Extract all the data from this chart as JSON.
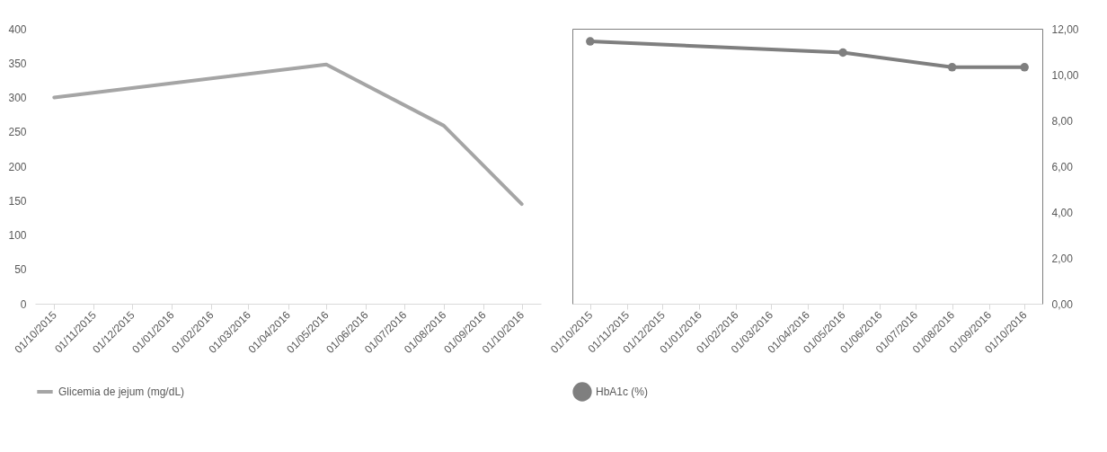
{
  "chart_data": [
    {
      "type": "line",
      "x": [
        "2015-10-01",
        "2016-05-01",
        "2016-08-01",
        "2016-10-01"
      ],
      "xlim": [
        "2015-09-16",
        "2016-10-16"
      ],
      "xticks": [
        {
          "value": "2015-10-01",
          "label": "01/10/2015"
        },
        {
          "value": "2015-11-01",
          "label": "01/11/2015"
        },
        {
          "value": "2015-12-01",
          "label": "01/12/2015"
        },
        {
          "value": "2016-01-01",
          "label": "01/01/2016"
        },
        {
          "value": "2016-02-01",
          "label": "01/02/2016"
        },
        {
          "value": "2016-03-01",
          "label": "01/03/2016"
        },
        {
          "value": "2016-04-01",
          "label": "01/04/2016"
        },
        {
          "value": "2016-05-01",
          "label": "01/05/2016"
        },
        {
          "value": "2016-06-01",
          "label": "01/06/2016"
        },
        {
          "value": "2016-07-01",
          "label": "01/07/2016"
        },
        {
          "value": "2016-08-01",
          "label": "01/08/2016"
        },
        {
          "value": "2016-09-01",
          "label": "01/09/2016"
        },
        {
          "value": "2016-10-01",
          "label": "01/10/2016"
        }
      ],
      "ylim": [
        0,
        400
      ],
      "yticks": [
        0,
        50,
        100,
        150,
        200,
        250,
        300,
        350,
        400
      ],
      "series": [
        {
          "name": "Glicemia de jejum (mg/dL)",
          "color": "#a5a5a5",
          "values": [
            300,
            348,
            259,
            145
          ]
        }
      ],
      "legend": "bottom",
      "grid": false
    },
    {
      "type": "line",
      "x": [
        "2015-10-01",
        "2016-05-01",
        "2016-08-01",
        "2016-10-01"
      ],
      "xlim": [
        "2015-09-16",
        "2016-10-16"
      ],
      "xticks": [
        {
          "value": "2015-10-01",
          "label": "01/10/2015"
        },
        {
          "value": "2015-11-01",
          "label": "01/11/2015"
        },
        {
          "value": "2015-12-01",
          "label": "01/12/2015"
        },
        {
          "value": "2016-01-01",
          "label": "01/01/2016"
        },
        {
          "value": "2016-02-01",
          "label": "01/02/2016"
        },
        {
          "value": "2016-03-01",
          "label": "01/03/2016"
        },
        {
          "value": "2016-04-01",
          "label": "01/04/2016"
        },
        {
          "value": "2016-05-01",
          "label": "01/05/2016"
        },
        {
          "value": "2016-06-01",
          "label": "01/06/2016"
        },
        {
          "value": "2016-07-01",
          "label": "01/07/2016"
        },
        {
          "value": "2016-08-01",
          "label": "01/08/2016"
        },
        {
          "value": "2016-09-01",
          "label": "01/09/2016"
        },
        {
          "value": "2016-10-01",
          "label": "01/10/2016"
        }
      ],
      "y2lim": [
        0,
        12
      ],
      "y2ticks": [
        {
          "value": 0,
          "label": "0,00"
        },
        {
          "value": 2,
          "label": "2,00"
        },
        {
          "value": 4,
          "label": "4,00"
        },
        {
          "value": 6,
          "label": "6,00"
        },
        {
          "value": 8,
          "label": "8,00"
        },
        {
          "value": 10,
          "label": "10,00"
        },
        {
          "value": 12,
          "label": "12,00"
        }
      ],
      "series": [
        {
          "name": "HbA1c (%)",
          "color": "#7f7f7f",
          "axis": "y2",
          "values": [
            11.45,
            10.96,
            10.32,
            10.32
          ]
        }
      ],
      "legend": "bottom",
      "marker": "circle",
      "grid": false
    }
  ]
}
